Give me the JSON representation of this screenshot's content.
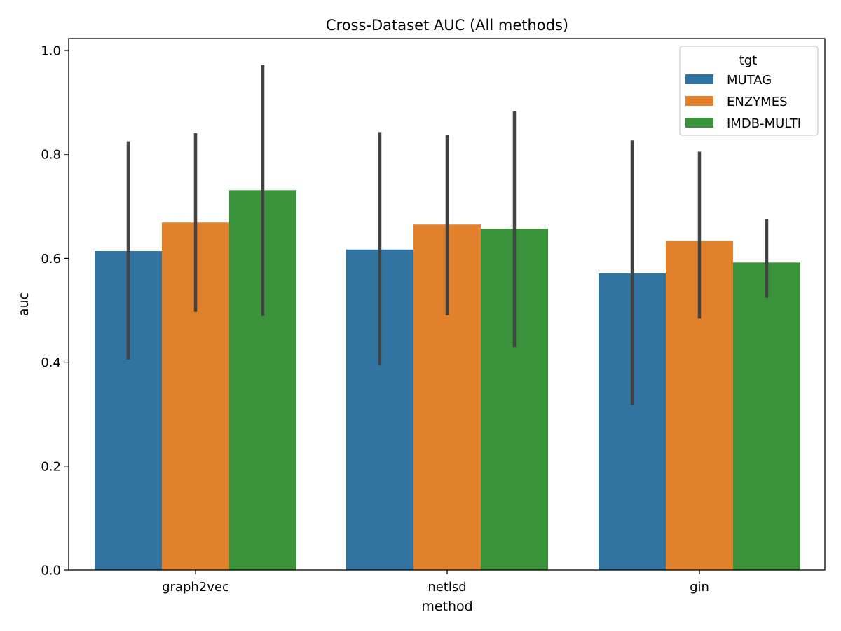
{
  "chart_data": {
    "type": "bar",
    "title": "Cross-Dataset AUC (All methods)",
    "xlabel": "method",
    "ylabel": "auc",
    "categories": [
      "graph2vec",
      "netlsd",
      "gin"
    ],
    "ylim": [
      0,
      1.0
    ],
    "yticks": [
      "0.0",
      "0.2",
      "0.4",
      "0.6",
      "0.8",
      "1.0"
    ],
    "grid": false,
    "legend": {
      "title": "tgt",
      "placement": "top-right"
    },
    "series": [
      {
        "name": "MUTAG",
        "color": "#3274a1",
        "values": [
          0.614,
          0.617,
          0.571
        ],
        "ci_low": [
          0.405,
          0.394,
          0.318
        ],
        "ci_high": [
          0.825,
          0.843,
          0.827
        ]
      },
      {
        "name": "ENZYMES",
        "color": "#e1812c",
        "values": [
          0.669,
          0.665,
          0.633
        ],
        "ci_low": [
          0.497,
          0.49,
          0.484
        ],
        "ci_high": [
          0.841,
          0.837,
          0.805
        ]
      },
      {
        "name": "IMDB-MULTI",
        "color": "#3a923a",
        "values": [
          0.731,
          0.657,
          0.592
        ],
        "ci_low": [
          0.489,
          0.429,
          0.524
        ],
        "ci_high": [
          0.972,
          0.883,
          0.675
        ]
      }
    ],
    "errorbar_color": "#424242"
  }
}
